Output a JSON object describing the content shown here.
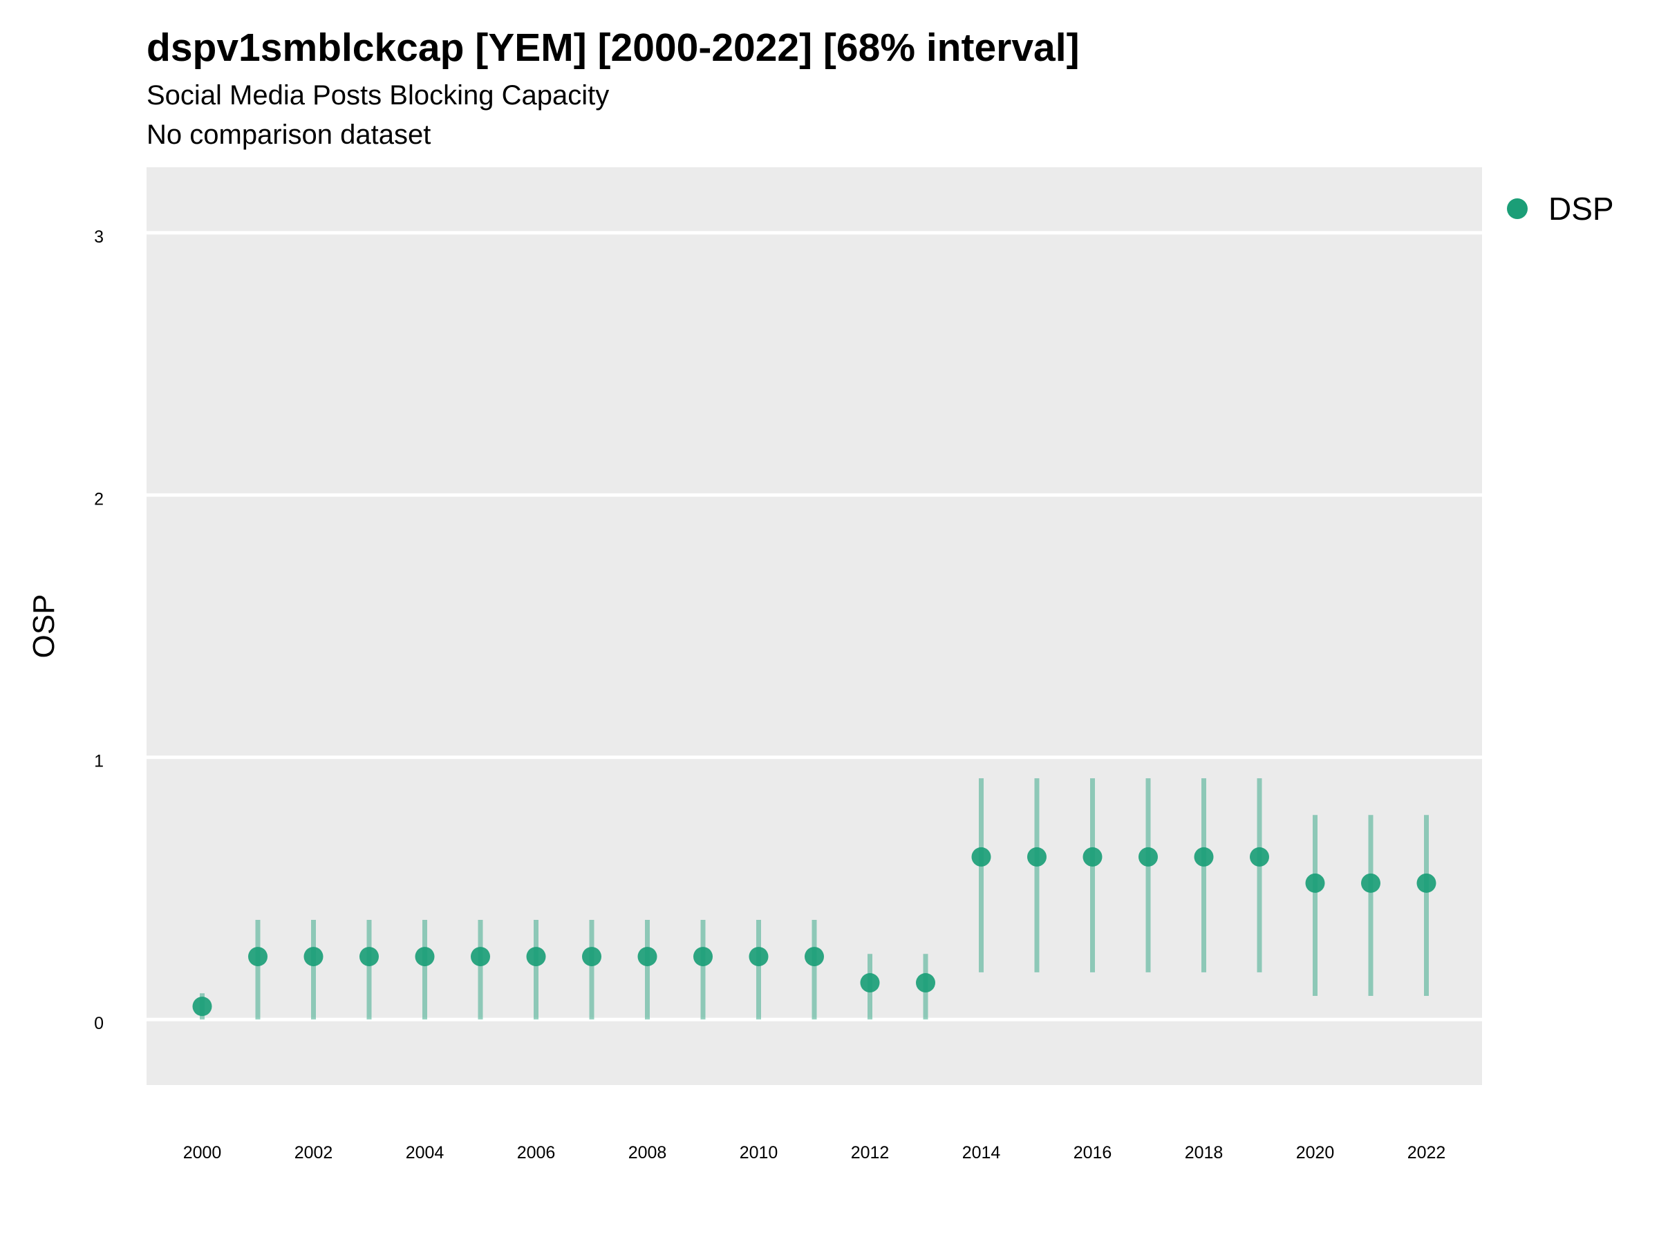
{
  "title": "dspv1smblckcap [YEM] [2000-2022] [68% interval]",
  "subtitle": "Social Media Posts Blocking Capacity",
  "caption": "No comparison dataset",
  "colors": {
    "point": "#1b9e77",
    "panel": "#ebebeb",
    "grid": "#ffffff"
  },
  "chart_data": {
    "type": "scatter",
    "xlabel": "",
    "ylabel": "OSP",
    "xlim": [
      1999,
      2023
    ],
    "ylim": [
      -0.25,
      3.25
    ],
    "x_ticks": [
      2000,
      2002,
      2004,
      2006,
      2008,
      2010,
      2012,
      2014,
      2016,
      2018,
      2020,
      2022
    ],
    "y_ticks": [
      0,
      1,
      2,
      3
    ],
    "grid": true,
    "legend_position": "right",
    "series": [
      {
        "name": "DSP",
        "x": [
          2000,
          2001,
          2002,
          2003,
          2004,
          2005,
          2006,
          2007,
          2008,
          2009,
          2010,
          2011,
          2012,
          2013,
          2014,
          2015,
          2016,
          2017,
          2018,
          2019,
          2020,
          2021,
          2022
        ],
        "y": [
          0.05,
          0.24,
          0.24,
          0.24,
          0.24,
          0.24,
          0.24,
          0.24,
          0.24,
          0.24,
          0.24,
          0.24,
          0.14,
          0.14,
          0.62,
          0.62,
          0.62,
          0.62,
          0.62,
          0.62,
          0.52,
          0.52,
          0.52
        ],
        "lower": [
          0.0,
          0.0,
          0.0,
          0.0,
          0.0,
          0.0,
          0.0,
          0.0,
          0.0,
          0.0,
          0.0,
          0.0,
          0.0,
          0.0,
          0.18,
          0.18,
          0.18,
          0.18,
          0.18,
          0.18,
          0.09,
          0.09,
          0.09
        ],
        "upper": [
          0.1,
          0.38,
          0.38,
          0.38,
          0.38,
          0.38,
          0.38,
          0.38,
          0.38,
          0.38,
          0.38,
          0.38,
          0.25,
          0.25,
          0.92,
          0.92,
          0.92,
          0.92,
          0.92,
          0.92,
          0.78,
          0.78,
          0.78
        ]
      }
    ]
  }
}
